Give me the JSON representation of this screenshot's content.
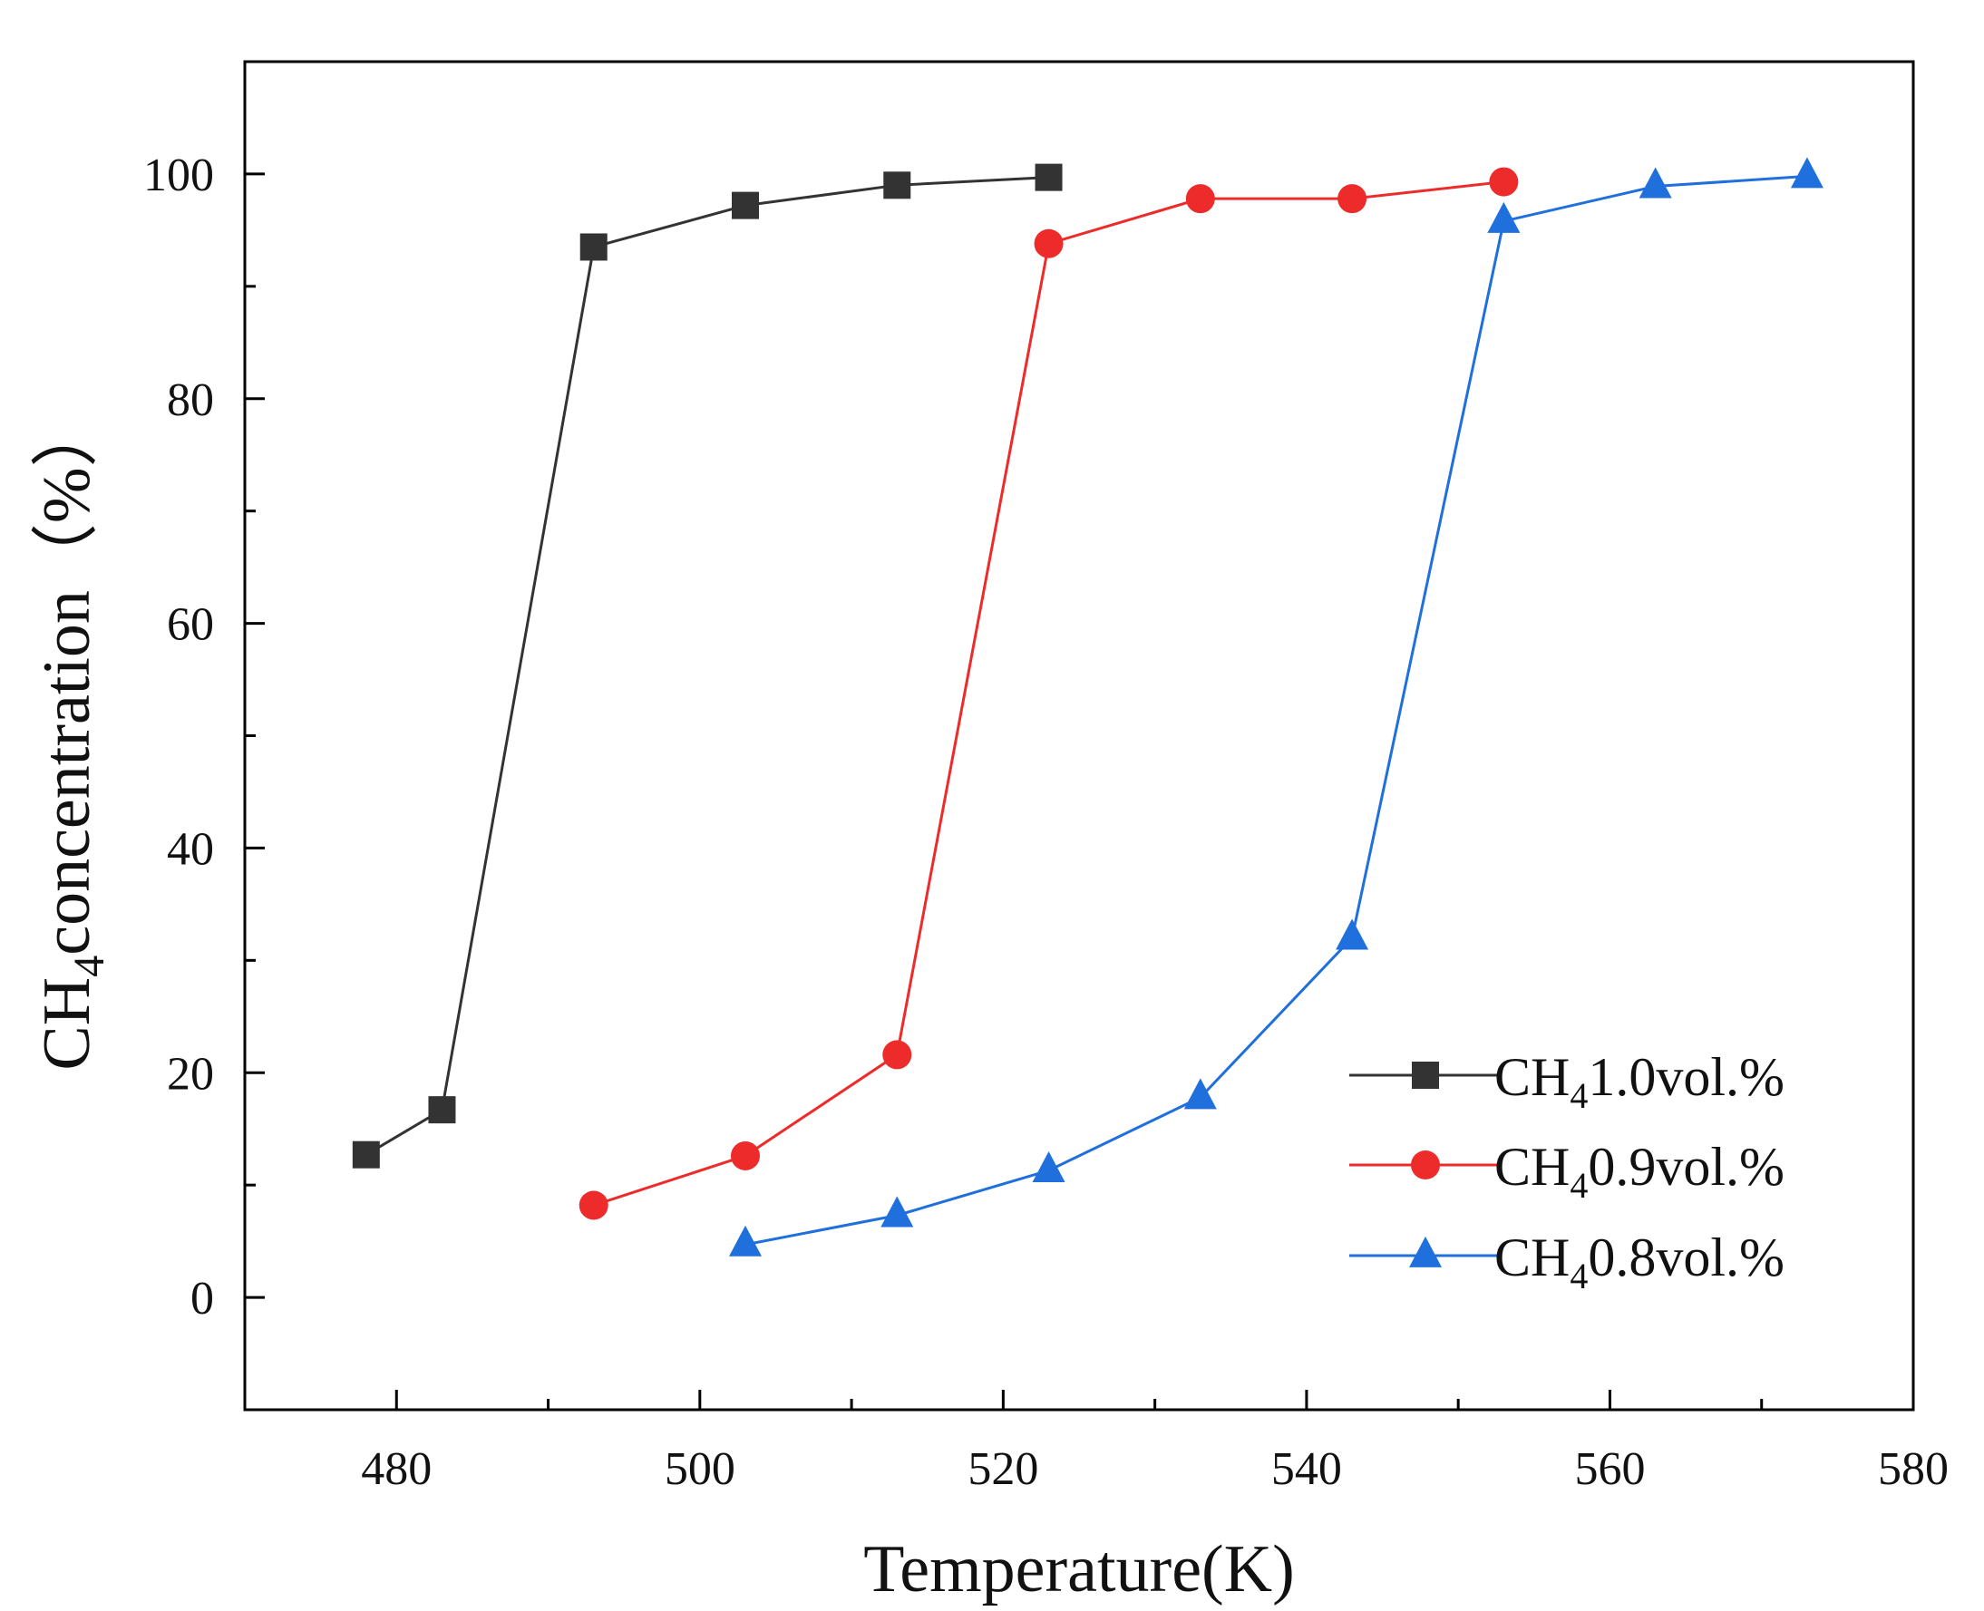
{
  "chart_data": {
    "type": "line",
    "title": "",
    "xlabel": "Temperature(K)",
    "ylabel": {
      "prefix": "CH",
      "sub": "4",
      "rest": "concentration（%）"
    },
    "xlim": [
      470,
      580
    ],
    "ylim": [
      -10,
      110
    ],
    "xticks": [
      480,
      500,
      520,
      540,
      560,
      580
    ],
    "yticks": [
      0,
      20,
      40,
      60,
      80,
      100
    ],
    "grid": false,
    "legend_position": "right",
    "series": [
      {
        "name": "CH41.0vol.%",
        "label_prefix": "CH",
        "label_sub": "4",
        "label_rest": "1.0vol.%",
        "color": "#333333",
        "marker": "square",
        "x": [
          478,
          483,
          493,
          503,
          513,
          523
        ],
        "y": [
          12.7,
          16.7,
          93.5,
          97.2,
          99.0,
          99.7
        ]
      },
      {
        "name": "CH40.9vol.%",
        "label_prefix": "CH",
        "label_sub": "4",
        "label_rest": "0.9vol.%",
        "color": "#ee2b2b",
        "marker": "circle",
        "x": [
          493,
          503,
          513,
          523,
          533,
          543,
          553
        ],
        "y": [
          8.2,
          12.6,
          21.6,
          93.8,
          97.8,
          97.8,
          99.3
        ]
      },
      {
        "name": "CH40.8vol.%",
        "label_prefix": "CH",
        "label_sub": "4",
        "label_rest": "0.8vol.%",
        "color": "#1f6fdc",
        "marker": "triangle",
        "x": [
          503,
          513,
          523,
          533,
          543,
          553,
          563,
          573
        ],
        "y": [
          4.7,
          7.3,
          11.3,
          17.8,
          32.0,
          95.8,
          98.9,
          99.8
        ]
      }
    ]
  }
}
